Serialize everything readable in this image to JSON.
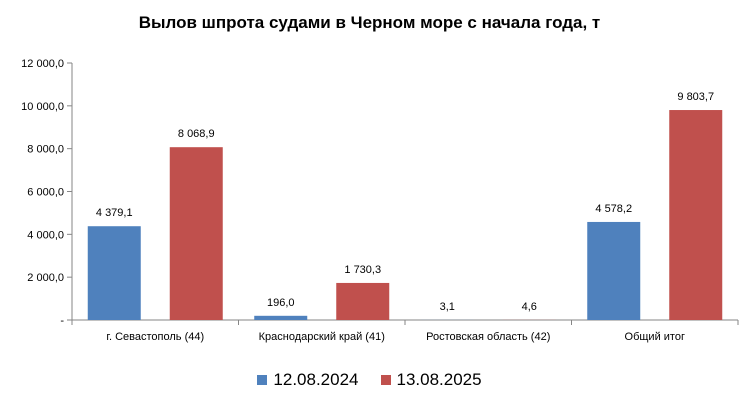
{
  "chart_data": {
    "type": "bar",
    "title": "Вылов шпрота судами в Черном море с начала  года, т",
    "xlabel": "",
    "ylabel": "",
    "categories": [
      "г. Севастополь (44)",
      "Краснодарский край (41)",
      "Ростовская область (42)",
      "Общий итог"
    ],
    "series": [
      {
        "name": "12.08.2024",
        "color": "#4F81BD",
        "values": [
          4379.1,
          196.0,
          3.1,
          4578.2
        ],
        "labels": [
          "4 379,1",
          "196,0",
          "3,1",
          "4 578,2"
        ]
      },
      {
        "name": "13.08.2025",
        "color": "#C0504D",
        "values": [
          8068.9,
          1730.3,
          4.6,
          9803.7
        ],
        "labels": [
          "8 068,9",
          "1 730,3",
          "4,6",
          "9 803,7"
        ]
      }
    ],
    "ylim": [
      0,
      12000
    ],
    "yticks": [
      0,
      2000,
      4000,
      6000,
      8000,
      10000,
      12000
    ],
    "ytick_labels": [
      "-",
      "2 000,0",
      "4 000,0",
      "6 000,0",
      "8 000,0",
      "10 000,0",
      "12 000,0"
    ],
    "grid": false,
    "legend_position": "bottom"
  }
}
